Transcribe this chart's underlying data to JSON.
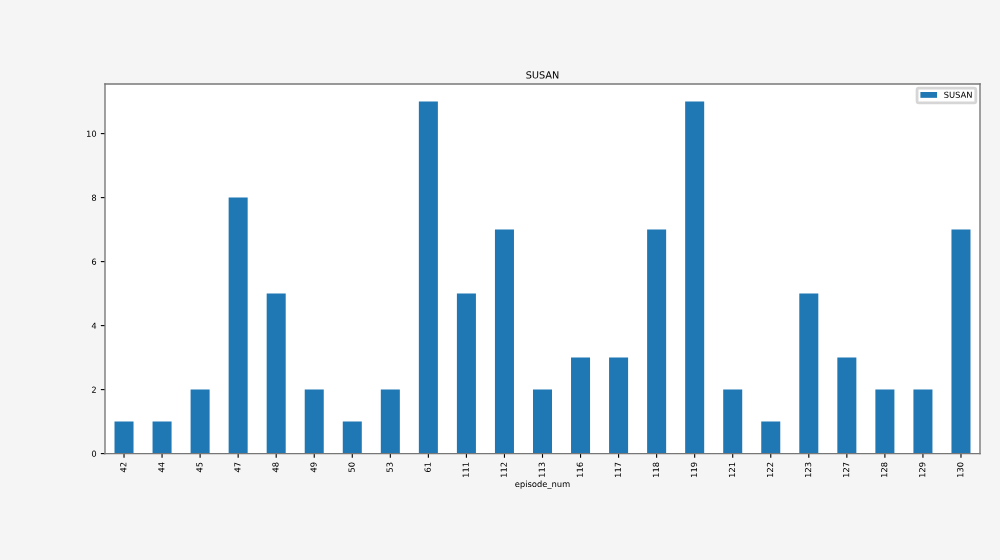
{
  "chart_data": {
    "type": "bar",
    "title": "SUSAN",
    "xlabel": "episode_num",
    "categories": [
      "42",
      "44",
      "45",
      "47",
      "48",
      "49",
      "50",
      "53",
      "61",
      "111",
      "112",
      "113",
      "116",
      "117",
      "118",
      "119",
      "121",
      "122",
      "123",
      "127",
      "128",
      "129",
      "130"
    ],
    "series": [
      {
        "name": "SUSAN",
        "color": "#1f77b4",
        "values": [
          1,
          1,
          2,
          8,
          5,
          2,
          1,
          2,
          11,
          5,
          7,
          2,
          3,
          3,
          7,
          11,
          2,
          1,
          5,
          3,
          2,
          2,
          7
        ]
      }
    ],
    "ylim": [
      0,
      11.55
    ],
    "yticks": [
      0,
      2,
      4,
      6,
      8,
      10
    ],
    "grid": false,
    "legend": "top right"
  }
}
